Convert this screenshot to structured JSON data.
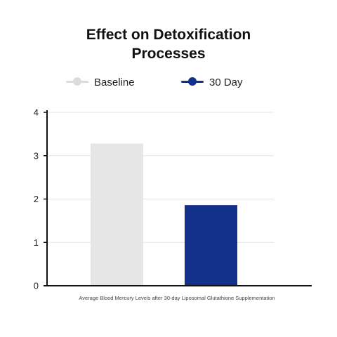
{
  "chart_data": {
    "type": "bar",
    "title_lines": [
      "Effect on Detoxification",
      "Processes"
    ],
    "categories": [
      "Average Blood Mercury Levels after 30-day Liposomal Glutathione Supplementation"
    ],
    "series": [
      {
        "name": "Baseline",
        "values": [
          3.28
        ],
        "color": "#e6e6e6",
        "legend_color": "#dcdcdc"
      },
      {
        "name": "30 Day",
        "values": [
          1.86
        ],
        "color": "#13318a",
        "legend_color": "#13318a"
      }
    ],
    "xlabel": "Average Blood Mercury Levels after 30-day Liposomal Glutathione Supplementation",
    "ylabel": "",
    "ylim": [
      0,
      4
    ],
    "yticks": [
      "0",
      "1",
      "2",
      "3",
      "4"
    ],
    "grid": true,
    "legend_position": "top"
  }
}
